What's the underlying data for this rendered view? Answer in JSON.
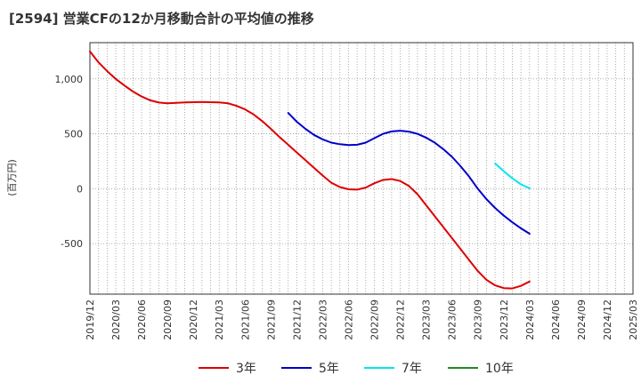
{
  "chart_data": {
    "type": "line",
    "title": "[2594]  営業CFの12か月移動合計の平均値の推移",
    "ylabel": "(百万円)",
    "xlabel": "",
    "ylim": [
      -960,
      1330
    ],
    "yticks": [
      -500,
      0,
      500,
      1000
    ],
    "ytick_labels": [
      "-500",
      "0",
      "500",
      "1,000"
    ],
    "grid": true,
    "legend_position": "bottom",
    "x_range": [
      "2019-12",
      "2025-03"
    ],
    "x_tick_labels": [
      "2019/12",
      "2020/03",
      "2020/06",
      "2020/09",
      "2020/12",
      "2021/03",
      "2021/06",
      "2021/09",
      "2021/12",
      "2022/03",
      "2022/06",
      "2022/09",
      "2022/12",
      "2023/03",
      "2023/06",
      "2023/09",
      "2023/12",
      "2024/03",
      "2024/06",
      "2024/09",
      "2024/12",
      "2025/03"
    ],
    "series": [
      {
        "name": "3年",
        "color": "#dd0000",
        "points": [
          [
            "2019-12",
            1250
          ],
          [
            "2020-01",
            1150
          ],
          [
            "2020-02",
            1070
          ],
          [
            "2020-03",
            1000
          ],
          [
            "2020-04",
            940
          ],
          [
            "2020-05",
            885
          ],
          [
            "2020-06",
            840
          ],
          [
            "2020-07",
            805
          ],
          [
            "2020-08",
            785
          ],
          [
            "2020-09",
            778
          ],
          [
            "2020-10",
            782
          ],
          [
            "2020-11",
            786
          ],
          [
            "2020-12",
            788
          ],
          [
            "2021-01",
            790
          ],
          [
            "2021-02",
            788
          ],
          [
            "2021-03",
            786
          ],
          [
            "2021-04",
            778
          ],
          [
            "2021-05",
            755
          ],
          [
            "2021-06",
            722
          ],
          [
            "2021-07",
            675
          ],
          [
            "2021-08",
            615
          ],
          [
            "2021-09",
            545
          ],
          [
            "2021-10",
            470
          ],
          [
            "2021-11",
            400
          ],
          [
            "2021-12",
            330
          ],
          [
            "2022-01",
            260
          ],
          [
            "2022-02",
            190
          ],
          [
            "2022-03",
            120
          ],
          [
            "2022-04",
            55
          ],
          [
            "2022-05",
            15
          ],
          [
            "2022-06",
            -5
          ],
          [
            "2022-07",
            -8
          ],
          [
            "2022-08",
            10
          ],
          [
            "2022-09",
            50
          ],
          [
            "2022-10",
            80
          ],
          [
            "2022-11",
            88
          ],
          [
            "2022-12",
            70
          ],
          [
            "2023-01",
            25
          ],
          [
            "2023-02",
            -50
          ],
          [
            "2023-03",
            -150
          ],
          [
            "2023-04",
            -250
          ],
          [
            "2023-05",
            -350
          ],
          [
            "2023-06",
            -450
          ],
          [
            "2023-07",
            -550
          ],
          [
            "2023-08",
            -650
          ],
          [
            "2023-09",
            -750
          ],
          [
            "2023-10",
            -830
          ],
          [
            "2023-11",
            -880
          ],
          [
            "2023-12",
            -905
          ],
          [
            "2024-01",
            -908
          ],
          [
            "2024-02",
            -885
          ],
          [
            "2024-03",
            -845
          ]
        ]
      },
      {
        "name": "5年",
        "color": "#0000cc",
        "points": [
          [
            "2021-11",
            690
          ],
          [
            "2021-12",
            610
          ],
          [
            "2022-01",
            545
          ],
          [
            "2022-02",
            490
          ],
          [
            "2022-03",
            450
          ],
          [
            "2022-04",
            420
          ],
          [
            "2022-05",
            405
          ],
          [
            "2022-06",
            398
          ],
          [
            "2022-07",
            400
          ],
          [
            "2022-08",
            420
          ],
          [
            "2022-09",
            460
          ],
          [
            "2022-10",
            500
          ],
          [
            "2022-11",
            522
          ],
          [
            "2022-12",
            528
          ],
          [
            "2023-01",
            520
          ],
          [
            "2023-02",
            500
          ],
          [
            "2023-03",
            465
          ],
          [
            "2023-04",
            420
          ],
          [
            "2023-05",
            360
          ],
          [
            "2023-06",
            290
          ],
          [
            "2023-07",
            205
          ],
          [
            "2023-08",
            110
          ],
          [
            "2023-09",
            0
          ],
          [
            "2023-10",
            -95
          ],
          [
            "2023-11",
            -175
          ],
          [
            "2023-12",
            -245
          ],
          [
            "2024-01",
            -305
          ],
          [
            "2024-02",
            -360
          ],
          [
            "2024-03",
            -410
          ]
        ]
      },
      {
        "name": "7年",
        "color": "#00e5ee",
        "points": [
          [
            "2023-11",
            230
          ],
          [
            "2023-12",
            160
          ],
          [
            "2024-01",
            95
          ],
          [
            "2024-02",
            40
          ],
          [
            "2024-03",
            3
          ]
        ]
      },
      {
        "name": "10年",
        "color": "#228b22",
        "points": []
      }
    ]
  }
}
